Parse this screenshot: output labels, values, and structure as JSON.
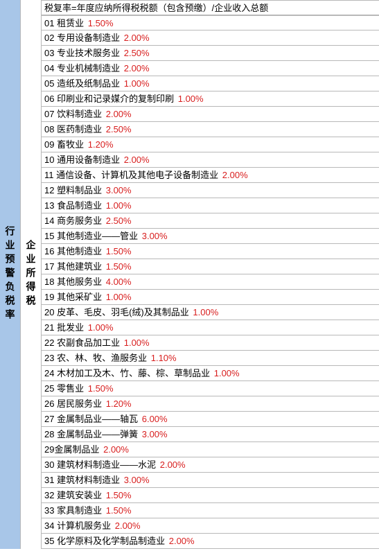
{
  "leftCol": "行业预警负税率",
  "midCol": "企业所得税",
  "headerFormula": "税复率=年度应纳所得税税额（包含预缴）/企业收入总额",
  "rateColor": "#d81e1e",
  "rows": [
    {
      "num": "01",
      "label": "租赁业",
      "rate": "1.50%"
    },
    {
      "num": "02",
      "label": "专用设备制造业",
      "rate": "2.00%"
    },
    {
      "num": "03",
      "label": "专业技术服务业",
      "rate": "2.50%"
    },
    {
      "num": "04",
      "label": "专业机械制造业",
      "rate": "2.00%"
    },
    {
      "num": "05",
      "label": "造纸及纸制品业",
      "rate": "1.00%"
    },
    {
      "num": "06",
      "label": "印刷业和记录媒介的复制印刷",
      "rate": "1.00%"
    },
    {
      "num": "07",
      "label": "饮料制造业",
      "rate": "2.00%"
    },
    {
      "num": "08",
      "label": "医药制造业",
      "rate": "2.50%"
    },
    {
      "num": "09",
      "label": "畜牧业",
      "rate": "1.20%"
    },
    {
      "num": "10",
      "label": "通用设备制造业",
      "rate": "2.00%"
    },
    {
      "num": "11",
      "label": "通信设备、计算机及其他电子设备制造业",
      "rate": "2.00%"
    },
    {
      "num": "12",
      "label": "塑料制品业",
      "rate": "3.00%"
    },
    {
      "num": "13",
      "label": "食品制造业",
      "rate": "1.00%"
    },
    {
      "num": "14",
      "label": "商务服务业",
      "rate": "2.50%"
    },
    {
      "num": "15",
      "label": "其他制造业——管业",
      "rate": "3.00%"
    },
    {
      "num": "16",
      "label": "其他制造业",
      "rate": "1.50%"
    },
    {
      "num": "17",
      "label": "其他建筑业",
      "rate": "1.50%"
    },
    {
      "num": "18",
      "label": "其他服务业",
      "rate": "4.00%"
    },
    {
      "num": "19",
      "label": "其他采矿业",
      "rate": "1.00%"
    },
    {
      "num": "20",
      "label": "皮革、毛皮、羽毛(绒)及其制品业",
      "rate": "1.00%"
    },
    {
      "num": "21",
      "label": "批发业",
      "rate": "1.00%"
    },
    {
      "num": "22",
      "label": "农副食品加工业",
      "rate": "1.00%"
    },
    {
      "num": "23",
      "label": "农、林、牧、渔服务业",
      "rate": "1.10%"
    },
    {
      "num": "24",
      "label": "木材加工及木、竹、藤、棕、草制品业",
      "rate": "1.00%"
    },
    {
      "num": "25",
      "label": "零售业",
      "rate": "1.50%"
    },
    {
      "num": "26",
      "label": "居民服务业",
      "rate": "1.20%"
    },
    {
      "num": "27",
      "label": "金属制品业——轴瓦",
      "rate": "6.00%"
    },
    {
      "num": "28",
      "label": "金属制品业——弹簧",
      "rate": "3.00%"
    },
    {
      "num": "29",
      "label": "金属制品业",
      "rate": "2.00%",
      "nospace": true
    },
    {
      "num": "30",
      "label": "建筑材料制造业——水泥",
      "rate": "2.00%"
    },
    {
      "num": "31",
      "label": "建筑材料制造业",
      "rate": "3.00%"
    },
    {
      "num": "32",
      "label": "建筑安装业",
      "rate": "1.50%"
    },
    {
      "num": "33",
      "label": "家具制造业",
      "rate": "1.50%"
    },
    {
      "num": "34",
      "label": "计算机服务业",
      "rate": "2.00%"
    },
    {
      "num": "35",
      "label": "化学原料及化学制品制造业",
      "rate": "2.00%"
    }
  ]
}
